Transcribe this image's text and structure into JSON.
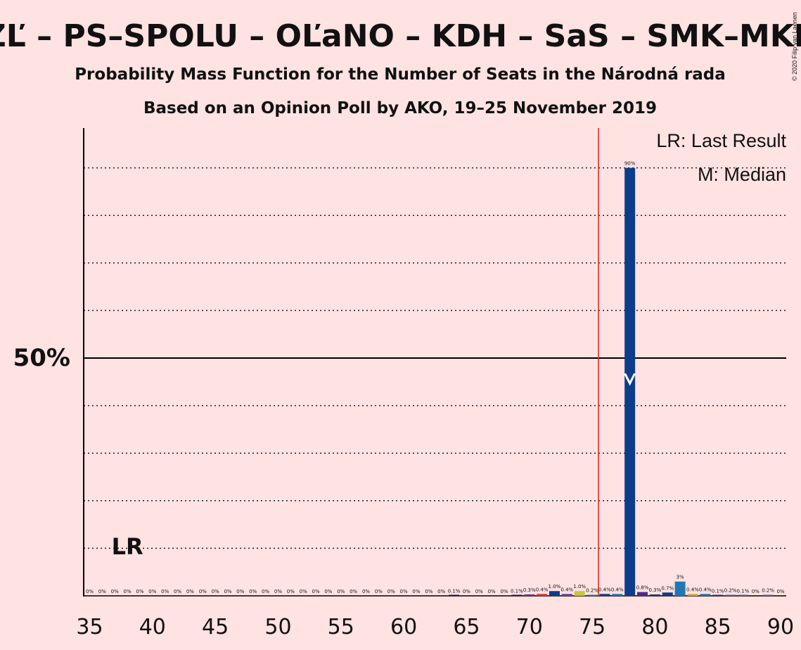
{
  "chart_data": {
    "type": "bar",
    "title": "ZĽ – PS–SPOLU – OĽaNO – KDH – SaS – SMK–MKP",
    "subtitle": "Probability Mass Function for the Number of Seats in the Národná rada",
    "subtitle2": "Based on an Opinion Poll by AKO, 19–25 November 2019",
    "copyright": "© 2020 Filip van Laenen",
    "xlabel": "",
    "ylabel": "",
    "xlim": [
      35,
      90
    ],
    "ylim": [
      0,
      100
    ],
    "y_major_label": "50%",
    "y_major_value": 50,
    "y_dotted_gridlines": [
      10,
      20,
      30,
      40,
      60,
      70,
      80,
      90
    ],
    "x_ticks": [
      "35",
      "40",
      "45",
      "50",
      "55",
      "60",
      "65",
      "70",
      "75",
      "80",
      "85",
      "90"
    ],
    "majority_line_x": 75.5,
    "last_result": {
      "seat": 38,
      "label": "LR"
    },
    "median_seat": 78,
    "legend": [
      "LR: Last Result",
      "M: Median"
    ],
    "seats": [
      35,
      36,
      37,
      38,
      39,
      40,
      41,
      42,
      43,
      44,
      45,
      46,
      47,
      48,
      49,
      50,
      51,
      52,
      53,
      54,
      55,
      56,
      57,
      58,
      59,
      60,
      61,
      62,
      63,
      64,
      65,
      66,
      67,
      68,
      69,
      70,
      71,
      72,
      73,
      74,
      75,
      76,
      77,
      78,
      79,
      80,
      81,
      82,
      83,
      84,
      85,
      86,
      87,
      88,
      89,
      90
    ],
    "values": [
      0,
      0,
      0,
      0,
      0,
      0,
      0,
      0,
      0,
      0,
      0,
      0,
      0,
      0,
      0,
      0,
      0,
      0,
      0,
      0,
      0,
      0,
      0,
      0,
      0,
      0,
      0,
      0,
      0,
      0.1,
      0,
      0,
      0,
      0,
      0.1,
      0.3,
      0.4,
      1.0,
      0.4,
      1.0,
      0.2,
      0.4,
      0.4,
      90,
      0.8,
      0.3,
      0.7,
      3,
      0.4,
      0.4,
      0.1,
      0.2,
      0.1,
      0,
      0.2,
      0
    ],
    "value_labels": [
      "0%",
      "0%",
      "0%",
      "0%",
      "0%",
      "0%",
      "0%",
      "0%",
      "0%",
      "0%",
      "0%",
      "0%",
      "0%",
      "0%",
      "0%",
      "0%",
      "0%",
      "0%",
      "0%",
      "0%",
      "0%",
      "0%",
      "0%",
      "0%",
      "0%",
      "0%",
      "0%",
      "0%",
      "0%",
      "0.1%",
      "0%",
      "0%",
      "0%",
      "0%",
      "0.1%",
      "0.3%",
      "0.4%",
      "1.0%",
      "0.4%",
      "1.0%",
      "0.2%",
      "0.4%",
      "0.4%",
      "90%",
      "0.8%",
      "0.3%",
      "0.7%",
      "3%",
      "0.4%",
      "0.4%",
      "0.1%",
      "0.2%",
      "0.1%",
      "0%",
      "0.2%",
      "0%"
    ],
    "bar_colors": [
      "#1a1a5e",
      "#1a1a5e",
      "#1a1a5e",
      "#1a1a5e",
      "#1a1a5e",
      "#1a1a5e",
      "#1a1a5e",
      "#1a1a5e",
      "#1a1a5e",
      "#1a1a5e",
      "#1a1a5e",
      "#1a1a5e",
      "#1a1a5e",
      "#1a1a5e",
      "#1a1a5e",
      "#1a1a5e",
      "#1a1a5e",
      "#1a1a5e",
      "#1a1a5e",
      "#1a1a5e",
      "#1a1a5e",
      "#1a1a5e",
      "#1a1a5e",
      "#1a1a5e",
      "#1a1a5e",
      "#1a1a5e",
      "#1a1a5e",
      "#1a1a5e",
      "#1a1a5e",
      "#1a1a5e",
      "#1a1a5e",
      "#1a1a5e",
      "#1a1a5e",
      "#1a1a5e",
      "#1a1a5e",
      "#7b2c8c",
      "#e3342f",
      "#0b3d8c",
      "#6f3da6",
      "#c8c83a",
      "#1f78b4",
      "#0b3d8c",
      "#1f78b4",
      "#0b3d8c",
      "#4c2a8c",
      "#1a3a7a",
      "#0b3d8c",
      "#1f78b4",
      "#c8b430",
      "#1f78b4",
      "#0b3d8c",
      "#1f78b4",
      "#1f78b4",
      "#1a1a5e",
      "#1f78b4",
      "#1a1a5e"
    ],
    "colors": {
      "background": "#ffe2e2",
      "majority_line": "#e02020",
      "median_bar": "#0b3d8c"
    }
  }
}
